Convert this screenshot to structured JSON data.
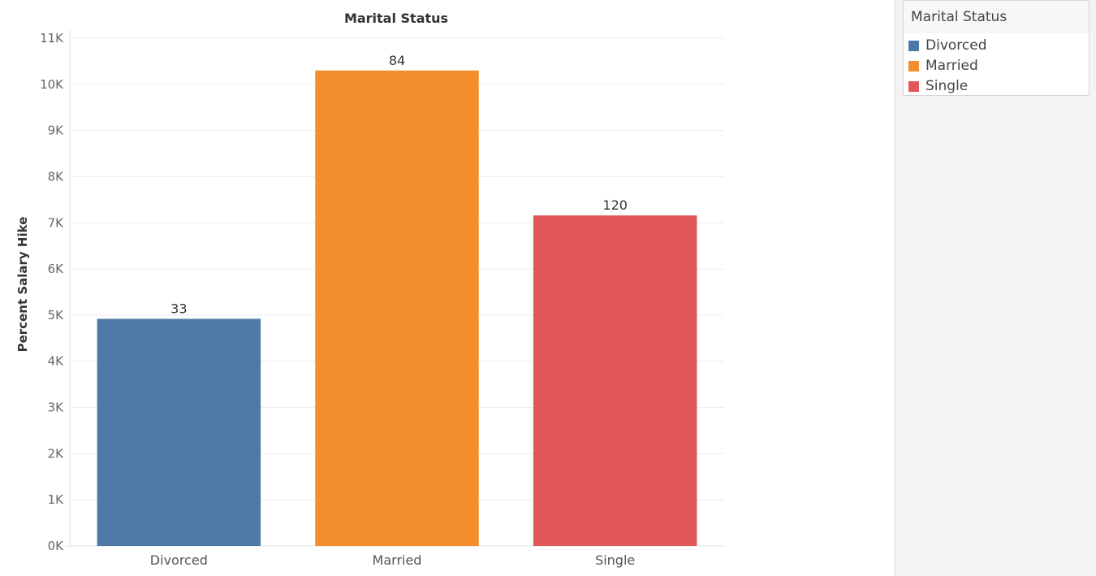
{
  "chart_data": {
    "type": "bar",
    "title": "Marital Status",
    "xlabel": "",
    "ylabel": "Percent Salary Hike",
    "categories": [
      "Divorced",
      "Married",
      "Single"
    ],
    "values": [
      4920,
      10300,
      7160
    ],
    "data_labels": [
      "33",
      "84",
      "120"
    ],
    "colors": [
      "#4e79a7",
      "#f28e2b",
      "#e15759"
    ],
    "ylim": [
      0,
      11000
    ],
    "yticks": [
      0,
      1000,
      2000,
      3000,
      4000,
      5000,
      6000,
      7000,
      8000,
      9000,
      10000,
      11000
    ],
    "ytick_labels": [
      "0K",
      "1K",
      "2K",
      "3K",
      "4K",
      "5K",
      "6K",
      "7K",
      "8K",
      "9K",
      "10K",
      "11K"
    ],
    "grid": true,
    "legend_position": "right"
  },
  "legend": {
    "title": "Marital Status",
    "items": [
      {
        "label": "Divorced",
        "color": "#4e79a7"
      },
      {
        "label": "Married",
        "color": "#f28e2b"
      },
      {
        "label": "Single",
        "color": "#e15759"
      }
    ]
  }
}
